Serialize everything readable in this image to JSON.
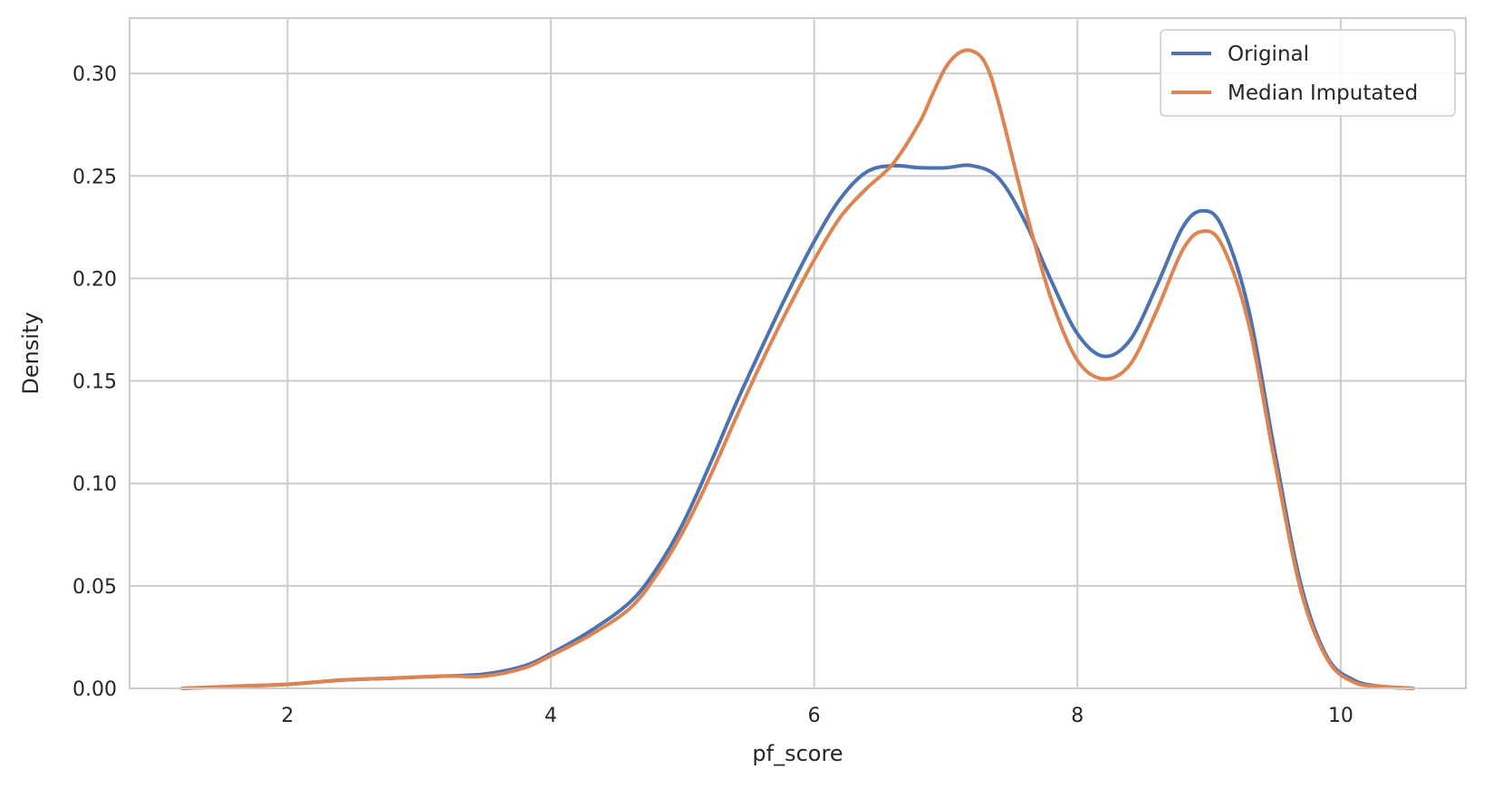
{
  "chart_data": {
    "type": "line",
    "title": "",
    "xlabel": "pf_score",
    "ylabel": "Density",
    "xlim": [
      0.8,
      10.95
    ],
    "ylim": [
      0,
      0.327
    ],
    "xticks": [
      2,
      4,
      6,
      8,
      10
    ],
    "xtick_labels": [
      "2",
      "4",
      "6",
      "8",
      "10"
    ],
    "yticks": [
      0.0,
      0.05,
      0.1,
      0.15,
      0.2,
      0.25,
      0.3
    ],
    "ytick_labels": [
      "0.00",
      "0.05",
      "0.10",
      "0.15",
      "0.20",
      "0.25",
      "0.30"
    ],
    "grid": true,
    "legend_position": "top-right",
    "series": [
      {
        "name": "Original",
        "color": "#4c72b0",
        "x": [
          1.2,
          1.6,
          2.0,
          2.4,
          2.8,
          3.2,
          3.5,
          3.8,
          4.0,
          4.3,
          4.6,
          4.8,
          5.0,
          5.2,
          5.4,
          5.6,
          5.8,
          6.0,
          6.2,
          6.4,
          6.6,
          6.8,
          7.0,
          7.2,
          7.4,
          7.6,
          7.8,
          8.0,
          8.2,
          8.4,
          8.6,
          8.8,
          8.95,
          9.1,
          9.3,
          9.5,
          9.7,
          9.9,
          10.1,
          10.3,
          10.55
        ],
        "y": [
          0.0,
          0.001,
          0.002,
          0.004,
          0.005,
          0.006,
          0.007,
          0.011,
          0.017,
          0.028,
          0.042,
          0.058,
          0.08,
          0.108,
          0.138,
          0.166,
          0.193,
          0.218,
          0.239,
          0.252,
          0.255,
          0.254,
          0.254,
          0.255,
          0.249,
          0.228,
          0.199,
          0.173,
          0.162,
          0.17,
          0.196,
          0.225,
          0.233,
          0.225,
          0.185,
          0.115,
          0.05,
          0.015,
          0.004,
          0.001,
          0.0
        ]
      },
      {
        "name": "Median Imputated",
        "color": "#dd8452",
        "x": [
          1.2,
          1.6,
          2.0,
          2.4,
          2.8,
          3.2,
          3.5,
          3.8,
          4.0,
          4.3,
          4.6,
          4.8,
          5.0,
          5.2,
          5.4,
          5.6,
          5.8,
          6.0,
          6.2,
          6.4,
          6.6,
          6.8,
          6.9,
          7.0,
          7.1,
          7.2,
          7.3,
          7.4,
          7.6,
          7.8,
          8.0,
          8.2,
          8.4,
          8.6,
          8.8,
          8.95,
          9.1,
          9.3,
          9.5,
          9.7,
          9.9,
          10.1,
          10.3,
          10.55
        ],
        "y": [
          0.0,
          0.001,
          0.002,
          0.004,
          0.005,
          0.006,
          0.006,
          0.01,
          0.016,
          0.026,
          0.039,
          0.055,
          0.076,
          0.102,
          0.131,
          0.159,
          0.185,
          0.209,
          0.23,
          0.244,
          0.256,
          0.276,
          0.29,
          0.303,
          0.31,
          0.311,
          0.305,
          0.286,
          0.235,
          0.19,
          0.16,
          0.151,
          0.158,
          0.184,
          0.214,
          0.223,
          0.216,
          0.178,
          0.11,
          0.047,
          0.014,
          0.003,
          0.001,
          0.0
        ]
      }
    ]
  }
}
